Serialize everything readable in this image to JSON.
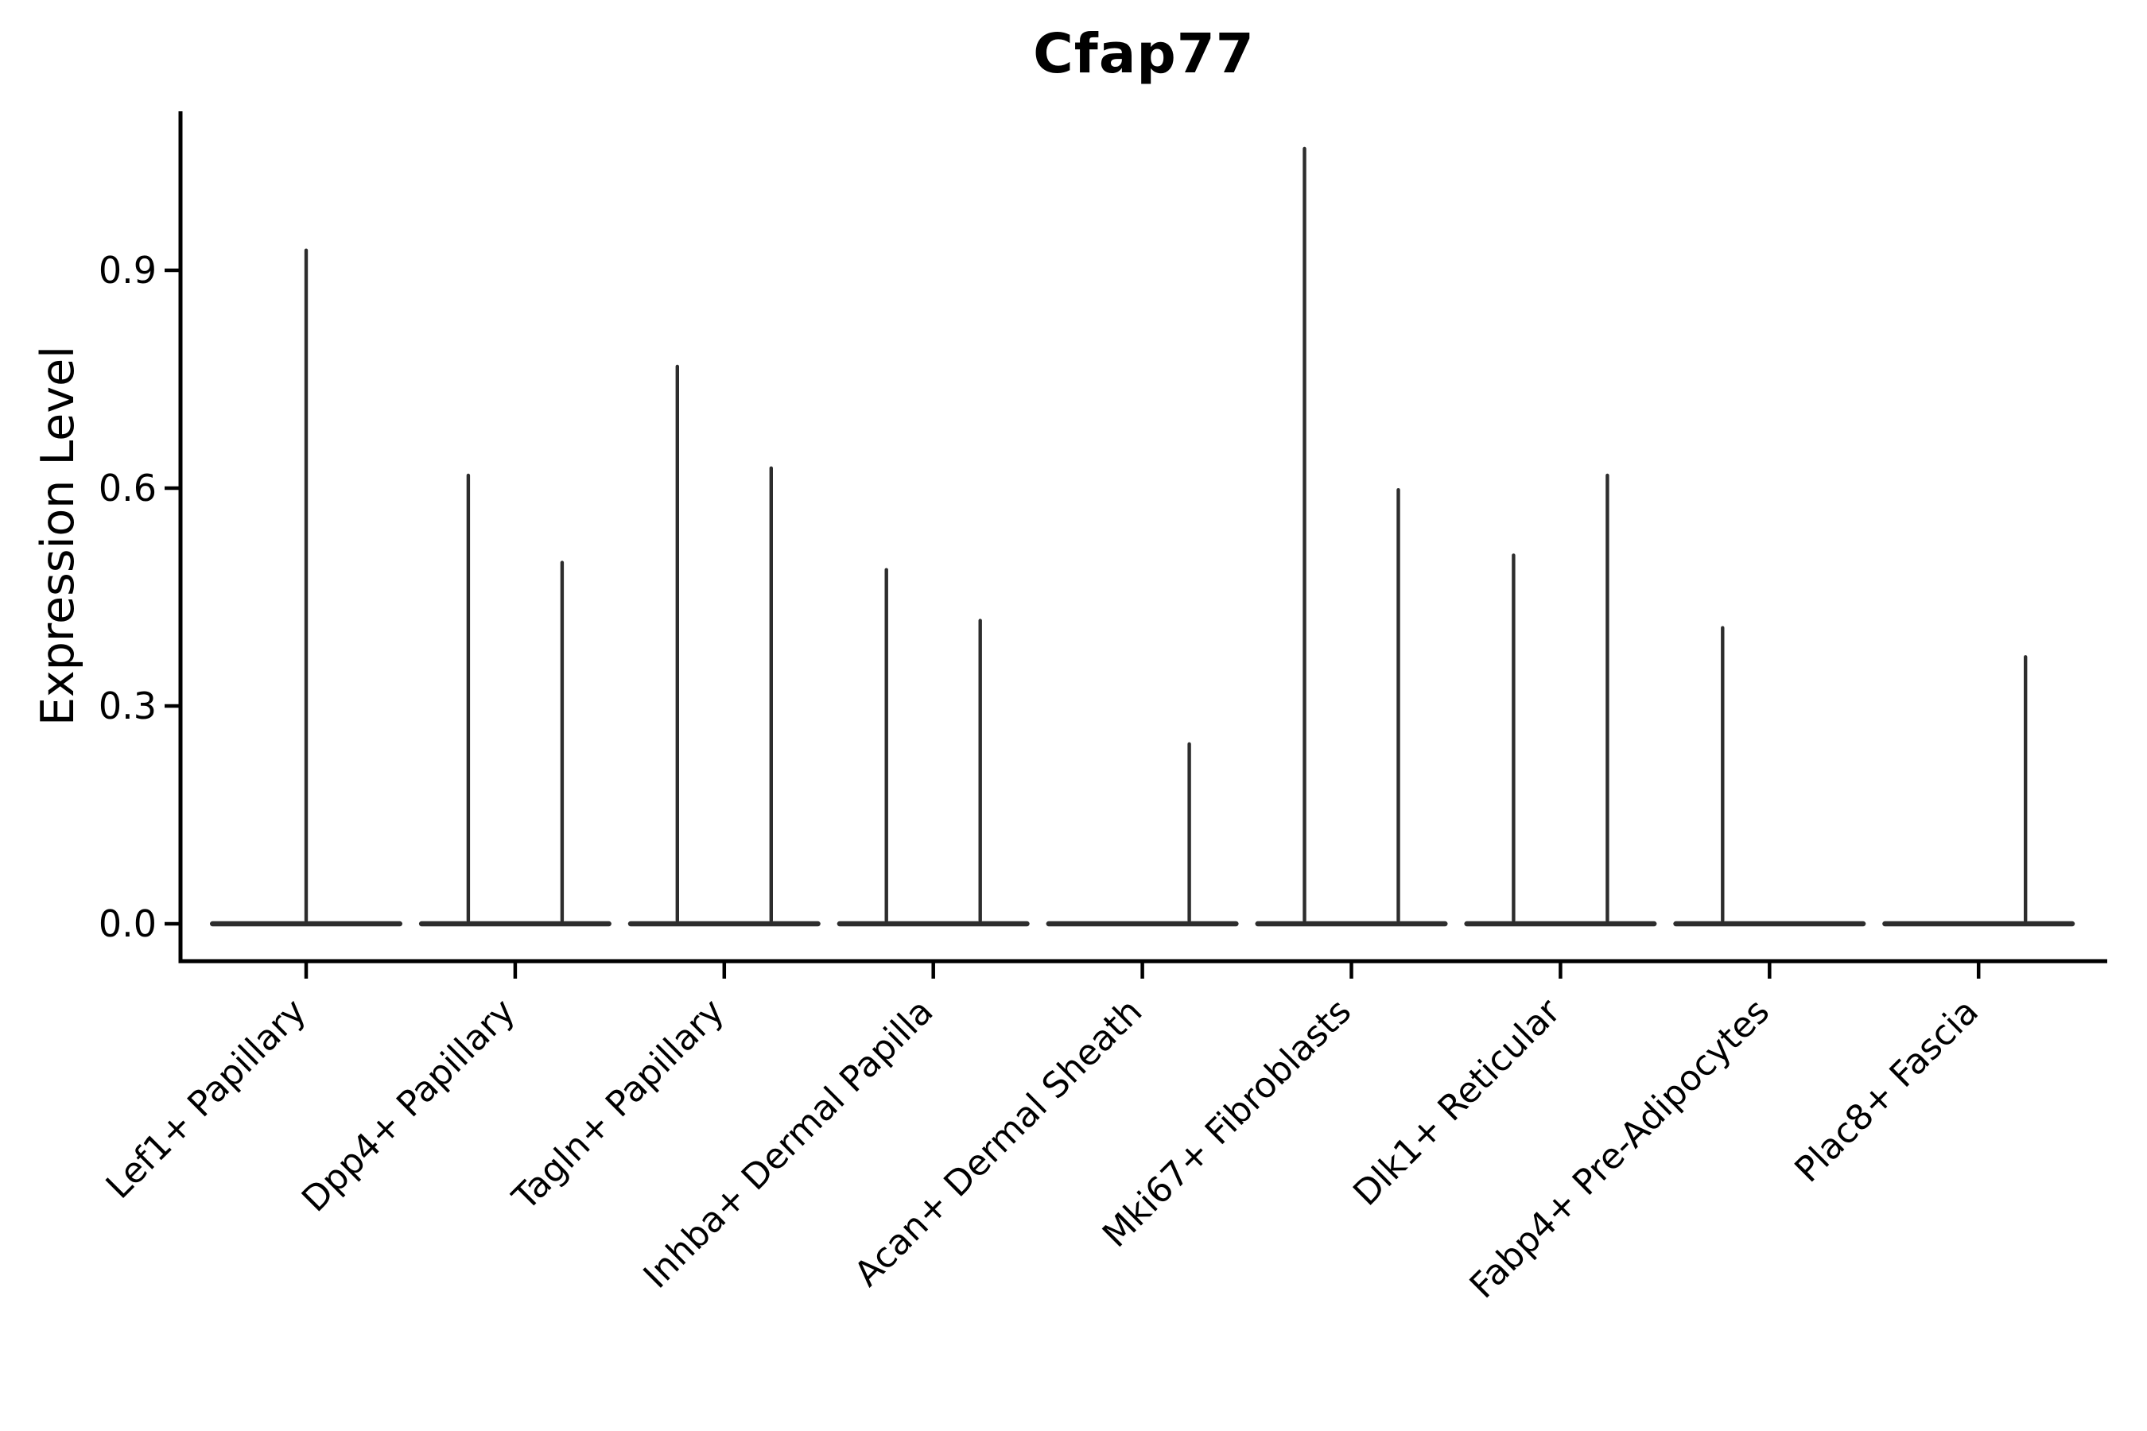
{
  "title": "Cfap77",
  "y_axis": {
    "label": "Expression Level",
    "tick_labels": [
      "0.0",
      "0.3",
      "0.6",
      "0.9"
    ]
  },
  "chart_data": {
    "type": "violin",
    "title": "Cfap77",
    "xlabel": "",
    "ylabel": "Expression Level",
    "ylim": [
      -0.05,
      1.12
    ],
    "yticks": [
      0.0,
      0.3,
      0.6,
      0.9
    ],
    "grid": false,
    "legend": null,
    "ink_color": "#2d2d2d",
    "axis_color": "#000000",
    "background_color": "#ffffff",
    "baseline_value": 0.0,
    "categories": [
      "Lef1+ Papillary",
      "Dpp4+ Papillary",
      "Tagln+ Papillary",
      "Inhba+ Dermal Papilla",
      "Acan+ Dermal Sheath",
      "Mki67+ Fibroblasts",
      "Dlk1+ Reticular",
      "Fabp4+ Pre-Adipocytes",
      "Plac8+ Fascia"
    ],
    "series": [
      {
        "category": "Lef1+ Papillary",
        "spikes": [
          {
            "position": "center",
            "value": 0.93
          }
        ]
      },
      {
        "category": "Dpp4+ Papillary",
        "spikes": [
          {
            "position": "left",
            "value": 0.62
          },
          {
            "position": "right",
            "value": 0.5
          }
        ]
      },
      {
        "category": "Tagln+ Papillary",
        "spikes": [
          {
            "position": "left",
            "value": 0.77
          },
          {
            "position": "right",
            "value": 0.63
          }
        ]
      },
      {
        "category": "Inhba+ Dermal Papilla",
        "spikes": [
          {
            "position": "left",
            "value": 0.49
          },
          {
            "position": "right",
            "value": 0.42
          }
        ]
      },
      {
        "category": "Acan+ Dermal Sheath",
        "spikes": [
          {
            "position": "right",
            "value": 0.25
          }
        ]
      },
      {
        "category": "Mki67+ Fibroblasts",
        "spikes": [
          {
            "position": "left",
            "value": 1.07
          },
          {
            "position": "right",
            "value": 0.6
          }
        ]
      },
      {
        "category": "Dlk1+ Reticular",
        "spikes": [
          {
            "position": "left",
            "value": 0.51
          },
          {
            "position": "right",
            "value": 0.62
          }
        ]
      },
      {
        "category": "Fabp4+ Pre-Adipocytes",
        "spikes": [
          {
            "position": "left",
            "value": 0.41
          }
        ]
      },
      {
        "category": "Plac8+ Fascia",
        "spikes": [
          {
            "position": "right",
            "value": 0.37
          }
        ]
      }
    ]
  }
}
